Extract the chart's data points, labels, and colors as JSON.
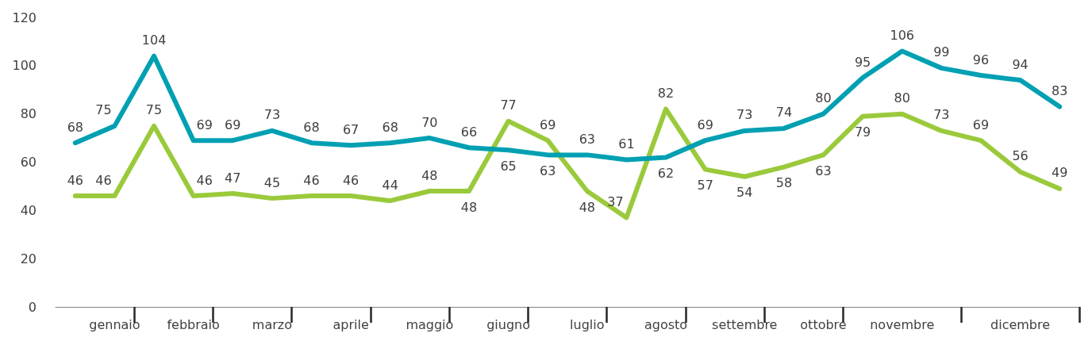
{
  "chart_data": {
    "type": "line",
    "categories": [
      null,
      "gennaio",
      null,
      "febbraio",
      null,
      "marzo",
      null,
      "aprile",
      null,
      "maggio",
      null,
      "giugno",
      null,
      "luglio",
      null,
      "agosto",
      null,
      "settembre",
      null,
      "ottobre",
      null,
      "novembre",
      null,
      null,
      "dicembre",
      null
    ],
    "series": [
      {
        "color": "#00a0b2",
        "values": [
          68,
          75,
          104,
          69,
          69,
          73,
          68,
          67,
          68,
          70,
          66,
          65,
          63,
          63,
          61,
          62,
          69,
          73,
          74,
          80,
          95,
          106,
          99,
          96,
          94,
          83
        ]
      },
      {
        "color": "#9aca3c",
        "values": [
          46,
          46,
          75,
          46,
          47,
          45,
          46,
          46,
          44,
          48,
          48,
          77,
          69,
          48,
          37,
          82,
          57,
          54,
          58,
          63,
          79,
          80,
          73,
          69,
          56,
          49
        ]
      }
    ],
    "ylim": [
      0,
      120
    ],
    "yticks": [
      0,
      20,
      40,
      60,
      80,
      100,
      120
    ],
    "grid": false,
    "marker": "none",
    "line_style": "solid",
    "data_labels": true
  }
}
